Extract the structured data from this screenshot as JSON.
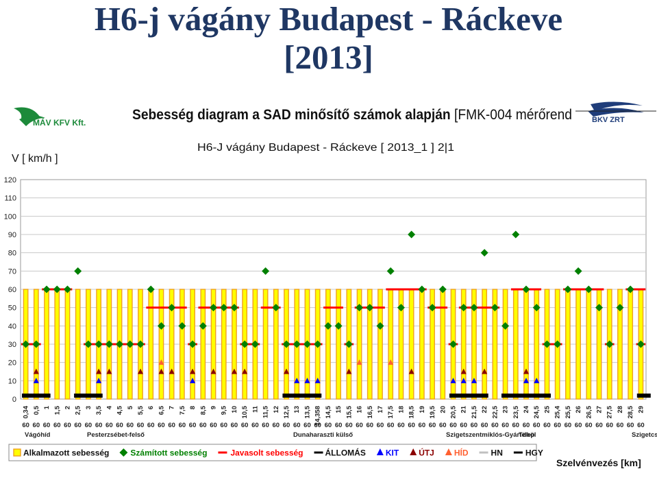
{
  "slide": {
    "title_line1": "H6-j vágány   Budapest - Ráckeve",
    "title_line2": "[2013]"
  },
  "header": {
    "mav_logo_text": "MÁV KFV Kft.",
    "bkv_logo_text": "BKV ZRT",
    "diagram_title_bold": "Sebesség diagram a SAD minősítő számok alapján",
    "diagram_title_normal": " [FMK-004 mérőrend"
  },
  "colors": {
    "applied_fill": "#ffff00",
    "applied_border": "#f0a020",
    "computed": "#008000",
    "proposed": "#ff0000",
    "kit": "#0000ff",
    "utj": "#8b0000",
    "hid": "#ff6030",
    "title": "#1f3763"
  },
  "chart_data": {
    "type": "bar",
    "title": "H6-J vágány  Budapest - Ráckeve [ 2013_1 ]  2|1",
    "ylabel": "V [ km/h ]",
    "xlabel": "Szelvénvezés [km]",
    "ylim": [
      0,
      120
    ],
    "yticks": [
      0,
      10,
      20,
      30,
      40,
      50,
      60,
      70,
      80,
      90,
      100,
      110,
      120
    ],
    "grid": true,
    "legend_position": "bottom",
    "categories": [
      "0,34",
      "0,5",
      "1",
      "1,5",
      "2",
      "2,5",
      "3",
      "3,5",
      "4",
      "4,5",
      "5",
      "5,5",
      "6",
      "6,5",
      "7",
      "7,5",
      "8",
      "8,5",
      "9",
      "9,5",
      "10",
      "10,5",
      "11",
      "11,5",
      "12",
      "12,5",
      "13",
      "13,5",
      "14,358",
      "14,5",
      "15",
      "15,5",
      "16",
      "16,5",
      "17",
      "17,5",
      "18",
      "18,5",
      "19",
      "19,5",
      "20",
      "20,5",
      "21",
      "21,5",
      "22",
      "22,5",
      "23",
      "23,5",
      "24",
      "24,5",
      "25",
      "25,4",
      "25,5",
      "26",
      "26,5",
      "27",
      "27,5",
      "28",
      "28,5",
      "29"
    ],
    "series": [
      {
        "name": "Alkalmazott sebesség",
        "kind": "bar",
        "values": [
          60,
          60,
          60,
          60,
          60,
          60,
          60,
          60,
          60,
          60,
          60,
          60,
          60,
          60,
          60,
          60,
          60,
          60,
          60,
          60,
          60,
          60,
          60,
          60,
          60,
          60,
          60,
          60,
          60,
          60,
          60,
          60,
          60,
          60,
          60,
          60,
          60,
          60,
          60,
          60,
          60,
          60,
          60,
          60,
          60,
          60,
          60,
          60,
          60,
          60,
          60,
          60,
          60,
          60,
          60,
          60,
          60,
          60,
          60,
          60
        ]
      },
      {
        "name": "Számított sebesség",
        "kind": "diamond",
        "values": [
          30,
          30,
          60,
          60,
          60,
          70,
          30,
          30,
          30,
          30,
          30,
          30,
          60,
          40,
          50,
          40,
          30,
          40,
          50,
          50,
          50,
          30,
          30,
          70,
          50,
          30,
          30,
          30,
          30,
          40,
          40,
          30,
          50,
          50,
          40,
          70,
          50,
          90,
          60,
          50,
          60,
          30,
          50,
          50,
          80,
          50,
          40,
          90,
          60,
          50,
          30,
          30,
          60,
          70,
          60,
          50,
          30,
          50,
          60,
          30
        ]
      },
      {
        "name": "Javasolt sebesség",
        "kind": "line",
        "segments": [
          {
            "from": "0,34",
            "to": "0,5",
            "value": 30
          },
          {
            "from": "1",
            "to": "2",
            "value": 60
          },
          {
            "from": "3",
            "to": "5,5",
            "value": 30
          },
          {
            "from": "6",
            "to": "7,5",
            "value": 50
          },
          {
            "from": "8",
            "to": "8",
            "value": 30
          },
          {
            "from": "8,5",
            "to": "10",
            "value": 50
          },
          {
            "from": "10,5",
            "to": "11",
            "value": 30
          },
          {
            "from": "11,5",
            "to": "12",
            "value": 50
          },
          {
            "from": "12,5",
            "to": "14,358",
            "value": 30
          },
          {
            "from": "14,5",
            "to": "15",
            "value": 50
          },
          {
            "from": "15,5",
            "to": "15,5",
            "value": 30
          },
          {
            "from": "16",
            "to": "17",
            "value": 50
          },
          {
            "from": "17,5",
            "to": "19",
            "value": 60
          },
          {
            "from": "19,5",
            "to": "20",
            "value": 50
          },
          {
            "from": "20,5",
            "to": "20,5",
            "value": 30
          },
          {
            "from": "21",
            "to": "22,5",
            "value": 50
          },
          {
            "from": "23,5",
            "to": "24,5",
            "value": 60
          },
          {
            "from": "25",
            "to": "25,4",
            "value": 30
          },
          {
            "from": "25,5",
            "to": "27",
            "value": 60
          },
          {
            "from": "27,5",
            "to": "27,5",
            "value": 30
          },
          {
            "from": "28,5",
            "to": "29",
            "value": 60
          },
          {
            "from": "29",
            "to": "29",
            "value": 30
          }
        ]
      },
      {
        "name": "ÁLLOMÁS",
        "kind": "station",
        "ranges": [
          [
            "0,34",
            "1"
          ],
          [
            "2,5",
            "3,5"
          ],
          [
            "12,5",
            "14,358"
          ],
          [
            "20,5",
            "22"
          ],
          [
            "23",
            "25"
          ],
          [
            "29",
            "29"
          ]
        ]
      },
      {
        "name": "KIT",
        "kind": "triangle",
        "value": 10,
        "at": [
          "0,5",
          "3,5",
          "8",
          "13",
          "13,5",
          "14,358",
          "20,5",
          "21",
          "21,5",
          "24",
          "24,5"
        ]
      },
      {
        "name": "ÚTJ",
        "kind": "triangle",
        "value": 15,
        "at": [
          "0,5",
          "3,5",
          "4",
          "5,5",
          "6,5",
          "7",
          "8",
          "9",
          "10",
          "10,5",
          "12,5",
          "15,5",
          "18,5",
          "21",
          "22",
          "24"
        ]
      },
      {
        "name": "HÍD",
        "kind": "triangle",
        "value": 20,
        "at": [
          "6,5",
          "16",
          "17,5"
        ]
      },
      {
        "name": "HN",
        "kind": "legend-only"
      },
      {
        "name": "HGY",
        "kind": "legend-only"
      }
    ],
    "applied_speed_row": [
      "60",
      "60",
      "60",
      "60",
      "60",
      "60",
      "60",
      "60",
      "60",
      "60",
      "60",
      "60",
      "60",
      "60",
      "60",
      "60",
      "60",
      "60",
      "60",
      "60",
      "60",
      "60",
      "60",
      "60",
      "60",
      "60",
      "60",
      "60",
      "60",
      "60",
      "60",
      "60",
      "60",
      "60",
      "60",
      "60",
      "60",
      "60",
      "60",
      "60",
      "60",
      "60",
      "60",
      "60",
      "60",
      "60",
      "60",
      "60",
      "60",
      "60",
      "60",
      "60",
      "60",
      "60",
      "60",
      "60",
      "60",
      "60",
      "60",
      "60"
    ],
    "station_labels": [
      {
        "text": "Vágóhíd",
        "at": "0,34"
      },
      {
        "text": "Pesterzsébet-felső",
        "at": "3"
      },
      {
        "text": "Dunaharaszti külső",
        "at": "14,358"
      },
      {
        "text": "Szigetszentmiklós-Gyártelep",
        "at": "22"
      },
      {
        "text": "Tököl",
        "at": "24"
      },
      {
        "text": "Szigetcs",
        "at": "29"
      }
    ]
  }
}
